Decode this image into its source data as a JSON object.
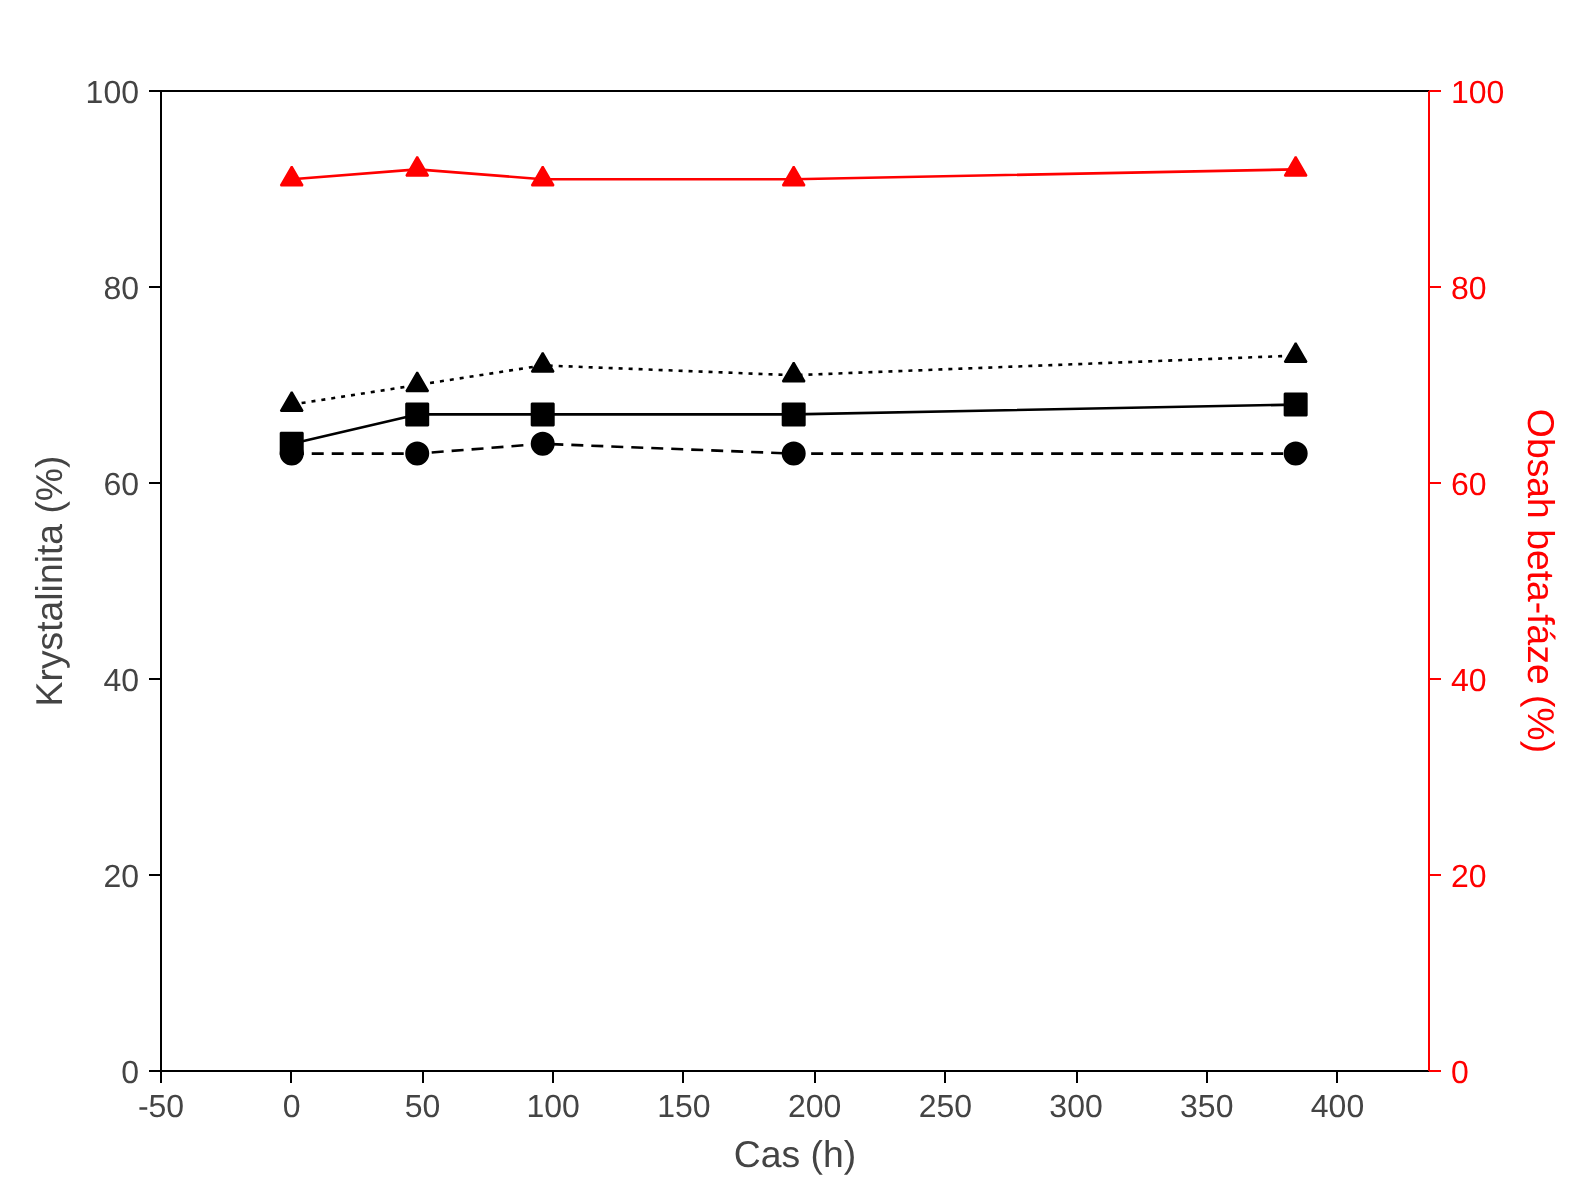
{
  "chart_data": {
    "type": "line",
    "xlabel": "Cas (h)",
    "ylabel": "Krystalinita (%)",
    "y2label": "Obsah beta-fáze (%)",
    "x": [
      0,
      48,
      96,
      192,
      384
    ],
    "xlim": [
      -50,
      435
    ],
    "xticks": [
      -50,
      0,
      50,
      100,
      150,
      200,
      250,
      300,
      350,
      400
    ],
    "ylim": [
      0,
      100
    ],
    "yticks": [
      0,
      20,
      40,
      60,
      80,
      100
    ],
    "y2lim": [
      0,
      100
    ],
    "y2ticks": [
      0,
      20,
      40,
      60,
      80,
      100
    ],
    "grid": false,
    "series": [
      {
        "color": "#000000",
        "values": [
          64,
          67,
          67,
          67,
          68
        ],
        "marker": "square",
        "line_style": "solid"
      },
      {
        "color": "#000000",
        "values": [
          63,
          63,
          64,
          63,
          63
        ],
        "marker": "circle",
        "line_style": "dashed"
      },
      {
        "color": "#000000",
        "values": [
          68,
          70,
          72,
          71,
          73
        ],
        "marker": "triangle",
        "line_style": "dotted"
      },
      {
        "color": "#ff0000",
        "values": [
          91,
          92,
          91,
          91,
          92
        ],
        "marker": "triangle",
        "line_style": "solid",
        "axis": "y2"
      }
    ]
  }
}
